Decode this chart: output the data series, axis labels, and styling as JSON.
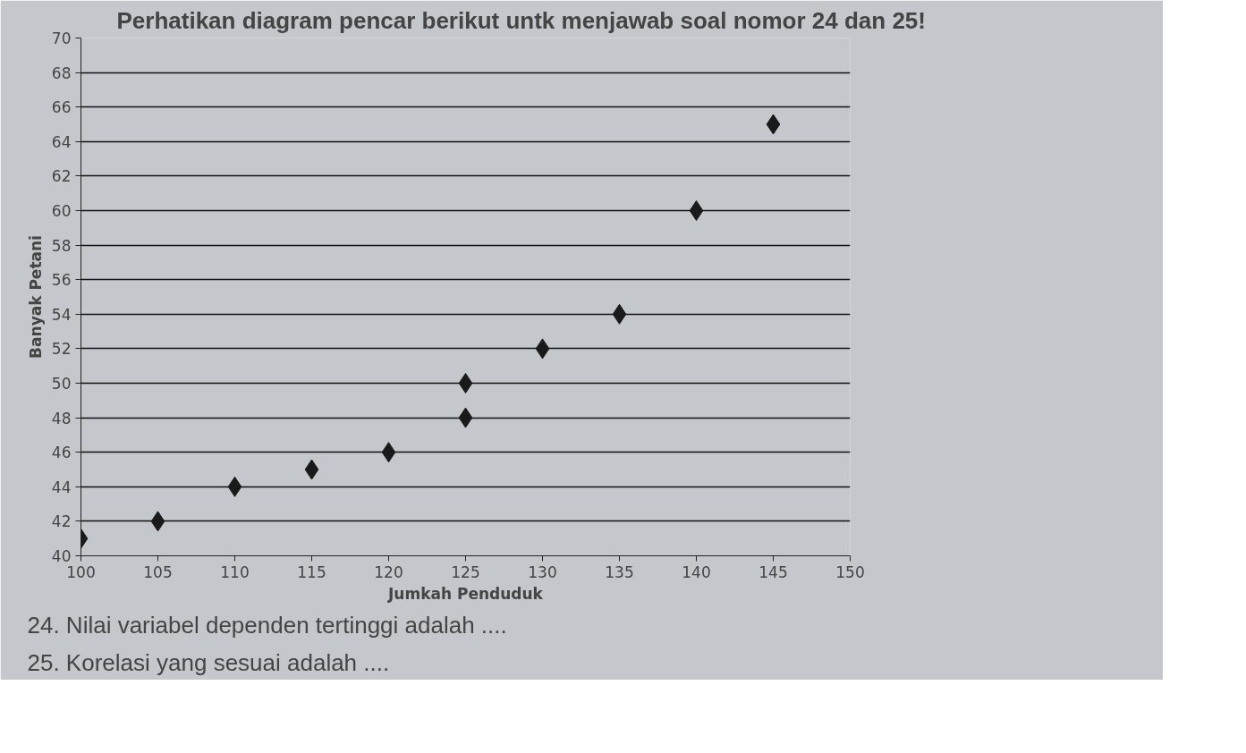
{
  "chart_data": {
    "type": "scatter",
    "title": "Perhatikan diagram pencar berikut untk menjawab soal nomor 24 dan 25!",
    "xlabel": "Jumkah Penduduk",
    "ylabel": "Banyak Petani",
    "x": [
      100,
      105,
      110,
      115,
      120,
      125,
      125,
      130,
      135,
      140,
      145
    ],
    "series": [
      {
        "color": "#1a1a1a",
        "values": [
          41,
          42,
          44,
          45,
          46,
          48,
          50,
          52,
          54,
          60,
          65
        ]
      }
    ],
    "xlim": [
      100,
      150
    ],
    "ylim": [
      40,
      70
    ],
    "xticks": [
      100,
      105,
      110,
      115,
      120,
      125,
      130,
      135,
      140,
      145,
      150
    ],
    "yticks": [
      40,
      42,
      44,
      46,
      48,
      50,
      52,
      54,
      56,
      58,
      60,
      62,
      64,
      66,
      68,
      70
    ],
    "grid": "y",
    "marker": "diamond",
    "annotations": [
      "24. Nilai variabel dependen tertinggi adalah ....",
      "25. Korelasi yang sesuai adalah ...."
    ]
  }
}
